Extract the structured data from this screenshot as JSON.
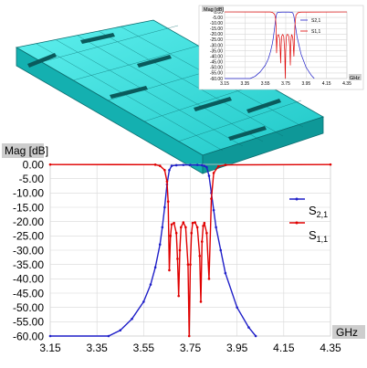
{
  "chart_data": [
    {
      "type": "line",
      "role": "inset",
      "ylabel": "Mag [dB]",
      "xlabel": "GHz",
      "xlim": [
        3.15,
        4.35
      ],
      "ylim": [
        -60,
        0
      ],
      "x_ticks": [
        "3.15",
        "3.35",
        "3.55",
        "3.75",
        "3.95",
        "4.15",
        "4.35"
      ],
      "y_ticks": [
        "0.00",
        "-5.00",
        "-10.00",
        "-15.00",
        "-20.00",
        "-25.00",
        "-30.00",
        "-35.00",
        "-40.00",
        "-45.00",
        "-50.00",
        "-55.00",
        "-60.00"
      ],
      "legend": [
        "S2,1",
        "S1,1"
      ],
      "legend_position": "top-right",
      "grid": true
    },
    {
      "type": "line",
      "role": "main",
      "ylabel": "Mag [dB]",
      "xlabel": "GHz",
      "xlim": [
        3.15,
        4.35
      ],
      "ylim": [
        -60,
        0
      ],
      "x_ticks": [
        "3.15",
        "3.35",
        "3.55",
        "3.75",
        "3.95",
        "4.15",
        "4.35"
      ],
      "y_ticks": [
        "0.00",
        "-5.00",
        "-10.00",
        "-15.00",
        "-20.00",
        "-25.00",
        "-30.00",
        "-35.00",
        "-40.00",
        "-45.00",
        "-50.00",
        "-55.00",
        "-60.00"
      ],
      "grid": true,
      "legend_position": "right",
      "series": [
        {
          "name": "S2,1",
          "label_main": "S",
          "label_sub": "2,1",
          "color": "#1f1fc8",
          "x": [
            3.15,
            3.4,
            3.45,
            3.5,
            3.55,
            3.58,
            3.6,
            3.62,
            3.63,
            3.64,
            3.65,
            3.66,
            3.67,
            3.69,
            3.72,
            3.75,
            3.78,
            3.8,
            3.81,
            3.82,
            3.83,
            3.84,
            3.85,
            3.86,
            3.88,
            3.9,
            3.95,
            4.0,
            4.03
          ],
          "values": [
            -60,
            -60,
            -58,
            -54,
            -48,
            -42,
            -36,
            -28,
            -22,
            -15,
            -7,
            -2,
            -0.5,
            -0.3,
            -0.2,
            -0.2,
            -0.2,
            -0.3,
            -0.5,
            -1,
            -4,
            -10,
            -16,
            -22,
            -30,
            -38,
            -50,
            -57,
            -60
          ]
        },
        {
          "name": "S1,1",
          "label_main": "S",
          "label_sub": "1,1",
          "color": "#e00000",
          "x": [
            3.15,
            3.6,
            3.62,
            3.64,
            3.65,
            3.655,
            3.66,
            3.665,
            3.67,
            3.68,
            3.69,
            3.695,
            3.7,
            3.705,
            3.71,
            3.72,
            3.73,
            3.74,
            3.745,
            3.75,
            3.755,
            3.76,
            3.77,
            3.78,
            3.79,
            3.795,
            3.8,
            3.805,
            3.81,
            3.82,
            3.83,
            3.84,
            3.85,
            3.87,
            3.9,
            4.35
          ],
          "values": [
            -0.05,
            -0.1,
            -0.5,
            -2,
            -6,
            -13,
            -37,
            -25,
            -21,
            -20.5,
            -24,
            -33,
            -46,
            -30,
            -22,
            -20.3,
            -22,
            -35,
            -60,
            -35,
            -24,
            -20.5,
            -20.3,
            -22,
            -32,
            -48,
            -27,
            -21.5,
            -20.5,
            -24,
            -40,
            -12,
            -3,
            -0.7,
            -0.2,
            -0.05
          ]
        }
      ]
    }
  ]
}
